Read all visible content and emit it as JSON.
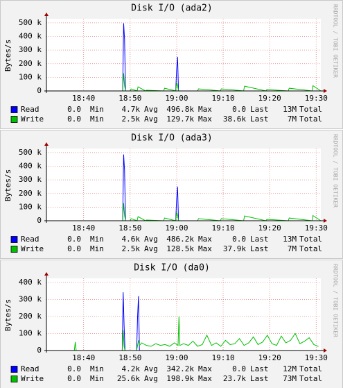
{
  "chart_data": [
    {
      "type": "line",
      "title": "Disk I/O (ada2)",
      "y_label": "Bytes/s",
      "watermark": "RRDTOOL / TOBI OETIKER",
      "x": [
        1112,
        1128.4,
        1128.6,
        1128.8,
        1129,
        1130,
        1130.2,
        1131.5,
        1131.7,
        1133.3,
        1133.5,
        1137.2,
        1137.4,
        1139.8,
        1140,
        1140.2,
        1140.4,
        1144.5,
        1144.7,
        1149.4,
        1149.6,
        1154.4,
        1154.6,
        1159.2,
        1159.4,
        1164,
        1164.2,
        1169.1,
        1169.3,
        1171
      ],
      "xlim": [
        1112,
        1171
      ],
      "xticks": [
        {
          "value": 1120,
          "label": "18:40"
        },
        {
          "value": 1130,
          "label": "18:50"
        },
        {
          "value": 1140,
          "label": "19:00"
        },
        {
          "value": 1150,
          "label": "19:10"
        },
        {
          "value": 1160,
          "label": "19:20"
        },
        {
          "value": 1170,
          "label": "19:30"
        }
      ],
      "ylim": [
        0,
        530000
      ],
      "yticks": [
        0,
        {
          "value": 100000,
          "label": "100 k"
        },
        {
          "value": 200000,
          "label": "200 k"
        },
        {
          "value": 300000,
          "label": "300 k"
        },
        {
          "value": 400000,
          "label": "400 k"
        },
        {
          "value": 500000,
          "label": "500 k"
        }
      ],
      "grid": true,
      "stat_labels": [
        "Min",
        "Avg",
        "Max",
        "Last",
        "Total"
      ],
      "series": [
        {
          "name": "Read",
          "color": "#0000ff",
          "stats": [
            "0.0",
            "4.7k",
            "496.8k",
            "0.0",
            "13M"
          ],
          "values": [
            0,
            0,
            496800,
            380000,
            0,
            0,
            0,
            0,
            0,
            0,
            0,
            0,
            0,
            0,
            160000,
            250000,
            0,
            0,
            0,
            0,
            0,
            0,
            0,
            0,
            0,
            0,
            0,
            0,
            0,
            0
          ]
        },
        {
          "name": "Write",
          "color": "#00c000",
          "stats": [
            "0.0",
            "2.5k",
            "129.7k",
            "38.6k",
            "7M"
          ],
          "values": [
            0,
            0,
            129700,
            40000,
            0,
            0,
            15000,
            0,
            30000,
            0,
            5000,
            0,
            20000,
            0,
            60000,
            40000,
            0,
            0,
            15000,
            0,
            15000,
            0,
            35000,
            0,
            10000,
            0,
            20000,
            0,
            38600,
            0
          ]
        }
      ]
    },
    {
      "type": "line",
      "title": "Disk I/O (ada3)",
      "y_label": "Bytes/s",
      "watermark": "RRDTOOL / TOBI OETIKER",
      "x": [
        1112,
        1128.4,
        1128.6,
        1128.8,
        1129,
        1130,
        1130.2,
        1131.5,
        1131.7,
        1133.3,
        1133.5,
        1137.2,
        1137.4,
        1139.8,
        1140,
        1140.2,
        1140.4,
        1144.5,
        1144.7,
        1149.4,
        1149.6,
        1154.4,
        1154.6,
        1159.2,
        1159.4,
        1164,
        1164.2,
        1169.1,
        1169.3,
        1171
      ],
      "xlim": [
        1112,
        1171
      ],
      "xticks": [
        {
          "value": 1120,
          "label": "18:40"
        },
        {
          "value": 1130,
          "label": "18:50"
        },
        {
          "value": 1140,
          "label": "19:00"
        },
        {
          "value": 1150,
          "label": "19:10"
        },
        {
          "value": 1160,
          "label": "19:20"
        },
        {
          "value": 1170,
          "label": "19:30"
        }
      ],
      "ylim": [
        0,
        530000
      ],
      "yticks": [
        0,
        {
          "value": 100000,
          "label": "100 k"
        },
        {
          "value": 200000,
          "label": "200 k"
        },
        {
          "value": 300000,
          "label": "300 k"
        },
        {
          "value": 400000,
          "label": "400 k"
        },
        {
          "value": 500000,
          "label": "500 k"
        }
      ],
      "grid": true,
      "stat_labels": [
        "Min",
        "Avg",
        "Max",
        "Last",
        "Total"
      ],
      "series": [
        {
          "name": "Read",
          "color": "#0000ff",
          "stats": [
            "0.0",
            "4.6k",
            "486.2k",
            "0.0",
            "13M"
          ],
          "values": [
            0,
            0,
            486200,
            370000,
            0,
            0,
            0,
            0,
            0,
            0,
            0,
            0,
            0,
            0,
            160000,
            250000,
            0,
            0,
            0,
            0,
            0,
            0,
            0,
            0,
            0,
            0,
            0,
            0,
            0,
            0
          ]
        },
        {
          "name": "Write",
          "color": "#00c000",
          "stats": [
            "0.0",
            "2.5k",
            "128.5k",
            "37.9k",
            "7M"
          ],
          "values": [
            0,
            0,
            128500,
            40000,
            0,
            0,
            15000,
            0,
            30000,
            0,
            5000,
            0,
            20000,
            0,
            60000,
            40000,
            0,
            0,
            15000,
            0,
            15000,
            0,
            35000,
            0,
            10000,
            0,
            20000,
            0,
            37900,
            0
          ]
        }
      ]
    },
    {
      "type": "line",
      "title": "Disk I/O (da0)",
      "y_label": "Bytes/s",
      "watermark": "RRDTOOL / TOBI OETIKER",
      "x": [
        1112,
        1118,
        1118.2,
        1118.4,
        1128.3,
        1128.5,
        1128.7,
        1128.9,
        1131.4,
        1131.6,
        1131.8,
        1132,
        1132.5,
        1133.5,
        1134.5,
        1135.5,
        1136.5,
        1137.5,
        1138.5,
        1139.5,
        1140.3,
        1140.5,
        1140.7,
        1141.5,
        1142.5,
        1143.5,
        1144.5,
        1145.5,
        1146.5,
        1147.5,
        1148.5,
        1149.5,
        1150.5,
        1151.5,
        1152.5,
        1153.5,
        1154.5,
        1155.5,
        1156.5,
        1157.5,
        1158.5,
        1159.5,
        1160.5,
        1161.5,
        1162.5,
        1163.5,
        1164.5,
        1165.5,
        1166.5,
        1167.5,
        1168.5,
        1169.5,
        1170.5
      ],
      "xlim": [
        1112,
        1171
      ],
      "xticks": [
        {
          "value": 1120,
          "label": "18:40"
        },
        {
          "value": 1130,
          "label": "18:50"
        },
        {
          "value": 1140,
          "label": "19:00"
        },
        {
          "value": 1150,
          "label": "19:10"
        },
        {
          "value": 1160,
          "label": "19:20"
        },
        {
          "value": 1170,
          "label": "19:30"
        }
      ],
      "ylim": [
        0,
        424500
      ],
      "yticks": [
        0,
        {
          "value": 100000,
          "label": "100 k"
        },
        {
          "value": 200000,
          "label": "200 k"
        },
        {
          "value": 300000,
          "label": "300 k"
        },
        {
          "value": 400000,
          "label": "400 k"
        }
      ],
      "grid": true,
      "stat_labels": [
        "Min",
        "Avg",
        "Max",
        "Last",
        "Total"
      ],
      "series": [
        {
          "name": "Read",
          "color": "#0000ff",
          "stats": [
            "0.0",
            "4.2k",
            "342.2k",
            "0.0",
            "12M"
          ],
          "values": [
            0,
            0,
            0,
            0,
            0,
            342200,
            150000,
            0,
            0,
            200000,
            320000,
            0,
            0,
            0,
            0,
            0,
            0,
            0,
            0,
            0,
            0,
            0,
            0,
            0,
            0,
            0,
            0,
            0,
            0,
            0,
            0,
            0,
            0,
            0,
            0,
            0,
            0,
            0,
            0,
            0,
            0,
            0,
            0,
            0,
            0,
            0,
            0,
            0,
            0,
            0,
            0,
            0,
            0
          ]
        },
        {
          "name": "Write",
          "color": "#00c000",
          "stats": [
            "0.0",
            "25.6k",
            "198.9k",
            "23.7k",
            "73M"
          ],
          "values": [
            0,
            0,
            50000,
            0,
            0,
            120000,
            25000,
            0,
            0,
            30000,
            60000,
            30000,
            45000,
            30000,
            25000,
            40000,
            30000,
            35000,
            25000,
            45000,
            30000,
            198900,
            30000,
            40000,
            30000,
            55000,
            25000,
            35000,
            90000,
            30000,
            45000,
            25000,
            60000,
            35000,
            40000,
            70000,
            30000,
            45000,
            80000,
            35000,
            50000,
            90000,
            40000,
            30000,
            85000,
            45000,
            60000,
            100000,
            40000,
            55000,
            75000,
            35000,
            23700
          ]
        }
      ]
    }
  ]
}
